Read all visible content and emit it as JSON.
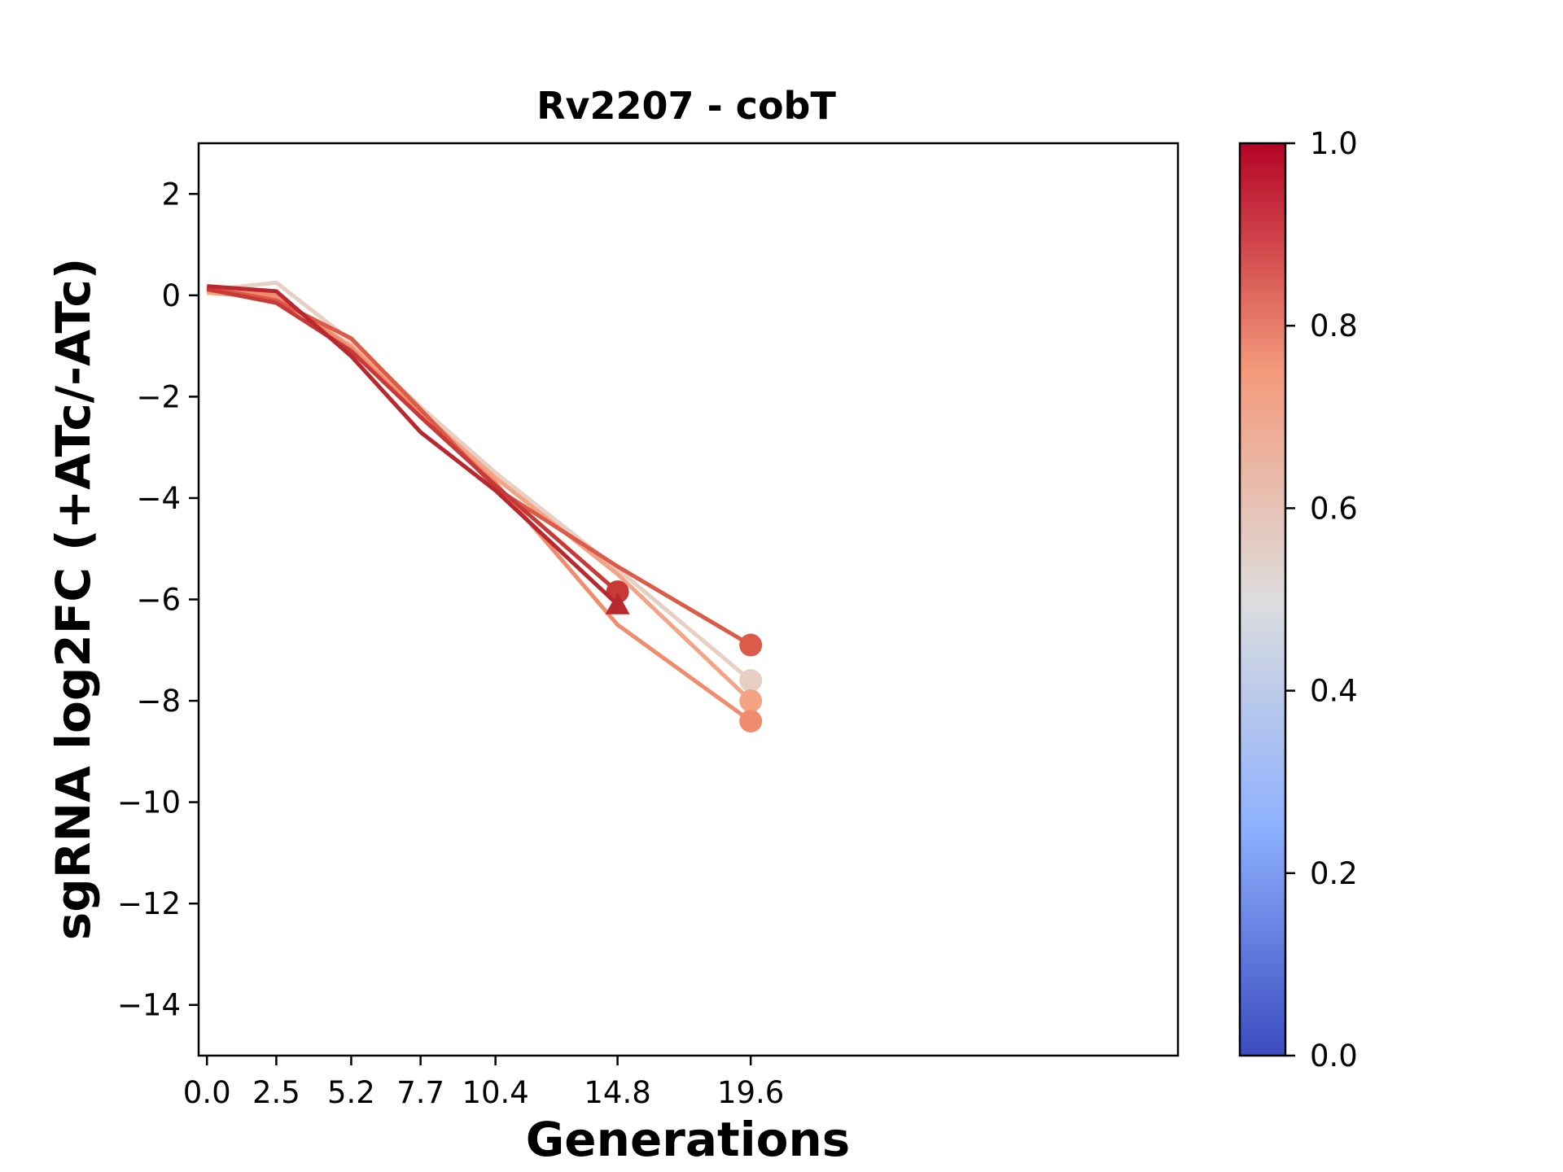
{
  "chart_data": {
    "type": "line",
    "title": "Rv2207 - cobT",
    "xlabel": "Generations",
    "ylabel": "sgRNA log2FC (+ATc/-ATc)",
    "xlim": [
      -0.3,
      35.0
    ],
    "ylim": [
      -15,
      3
    ],
    "x_ticks": [
      0.0,
      2.5,
      5.2,
      7.7,
      10.4,
      14.8,
      19.6
    ],
    "x_tick_labels": [
      "0.0",
      "2.5",
      "5.2",
      "7.7",
      "10.4",
      "14.8",
      "19.6"
    ],
    "y_ticks": [
      2,
      0,
      -2,
      -4,
      -6,
      -8,
      -10,
      -12,
      -14
    ],
    "y_tick_labels": [
      "2",
      "0",
      "−2",
      "−4",
      "−6",
      "−8",
      "−10",
      "−12",
      "−14"
    ],
    "grid": false,
    "legend": "none",
    "series": [
      {
        "x": [
          0.0,
          2.5,
          5.2,
          7.7,
          10.4,
          14.8,
          19.6
        ],
        "y": [
          0.1,
          0.25,
          -0.9,
          -2.2,
          -3.5,
          -5.4,
          -7.6
        ],
        "score": 0.58,
        "end_marker": "circle",
        "color": "#e7cfc3"
      },
      {
        "x": [
          0.0,
          2.5,
          5.2,
          7.7,
          10.4,
          14.8,
          19.6
        ],
        "y": [
          0.05,
          -0.05,
          -1.0,
          -2.3,
          -3.6,
          -5.5,
          -8.0
        ],
        "score": 0.72,
        "end_marker": "circle",
        "color": "#f4a385"
      },
      {
        "x": [
          0.0,
          2.5,
          5.2,
          7.7,
          10.4,
          14.8,
          19.6
        ],
        "y": [
          0.1,
          0.0,
          -1.05,
          -2.35,
          -3.7,
          -6.5,
          -8.4
        ],
        "score": 0.76,
        "end_marker": "circle",
        "color": "#f08c6c"
      },
      {
        "x": [
          0.0,
          2.5,
          5.2,
          7.7,
          10.4,
          14.8,
          19.6
        ],
        "y": [
          0.15,
          -0.1,
          -0.85,
          -2.25,
          -3.8,
          -5.35,
          -6.9
        ],
        "score": 0.88,
        "end_marker": "circle",
        "color": "#db5a48"
      },
      {
        "x": [
          0.0,
          2.5,
          5.2,
          7.7,
          10.4,
          14.8
        ],
        "y": [
          0.12,
          -0.15,
          -1.1,
          -2.4,
          -3.75,
          -5.85
        ],
        "score": 0.92,
        "end_marker": "circle",
        "color": "#c83a37"
      },
      {
        "x": [
          0.0,
          2.5,
          5.2,
          7.7,
          10.4,
          14.8
        ],
        "y": [
          0.18,
          0.08,
          -1.2,
          -2.7,
          -3.85,
          -6.1
        ],
        "score": 0.96,
        "end_marker": "triangle",
        "color": "#b9282f"
      }
    ],
    "colorbar": {
      "range": [
        0.0,
        1.0
      ],
      "ticks": [
        0.0,
        0.2,
        0.4,
        0.6,
        0.8,
        1.0
      ],
      "tick_labels": [
        "0.0",
        "0.2",
        "0.4",
        "0.6",
        "0.8",
        "1.0"
      ],
      "colormap": "coolwarm",
      "stops": [
        {
          "value": 0.0,
          "color": "#3b4cc0"
        },
        {
          "value": 0.25,
          "color": "#8db0fe"
        },
        {
          "value": 0.5,
          "color": "#dddddd"
        },
        {
          "value": 0.75,
          "color": "#f49a7b"
        },
        {
          "value": 1.0,
          "color": "#b40426"
        }
      ]
    }
  }
}
